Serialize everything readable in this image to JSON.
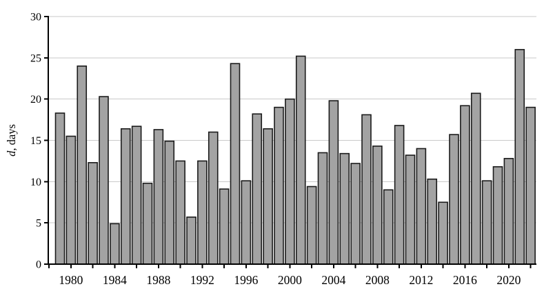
{
  "chart_data": {
    "type": "bar",
    "title": "",
    "xlabel": "",
    "ylabel": "d, days",
    "ylabel_italic_part": "d",
    "ylabel_regular_part": ", days",
    "ylim": [
      0,
      30
    ],
    "yticks": [
      0,
      5,
      10,
      15,
      20,
      25,
      30
    ],
    "grid": "horizontal-gridlines-at-yticks",
    "legend_position": "none",
    "categories": [
      1979,
      1980,
      1981,
      1982,
      1983,
      1984,
      1985,
      1986,
      1987,
      1988,
      1989,
      1990,
      1991,
      1992,
      1993,
      1994,
      1995,
      1996,
      1997,
      1998,
      1999,
      2000,
      2001,
      2002,
      2003,
      2004,
      2005,
      2006,
      2007,
      2008,
      2009,
      2010,
      2011,
      2012,
      2013,
      2014,
      2015,
      2016,
      2017,
      2018,
      2019,
      2020,
      2021,
      2022
    ],
    "values": [
      18.3,
      15.5,
      24.0,
      12.3,
      20.3,
      4.9,
      16.4,
      16.7,
      9.8,
      16.3,
      14.9,
      12.5,
      5.7,
      12.5,
      16.0,
      9.1,
      24.3,
      10.1,
      18.2,
      16.4,
      19.0,
      20.0,
      25.2,
      9.4,
      13.5,
      19.8,
      13.4,
      12.2,
      18.1,
      14.3,
      9.0,
      16.8,
      13.2,
      14.0,
      10.3,
      7.5,
      15.7,
      19.2,
      20.7,
      10.1,
      11.8,
      12.8,
      26.0,
      19.0
    ],
    "xtick_minor_years_step": 2,
    "xtick_label_years": [
      1980,
      1984,
      1988,
      1992,
      1996,
      2000,
      2004,
      2008,
      2012,
      2016,
      2020
    ],
    "colors": {
      "bar_fill": "#a3a3a3",
      "bar_stroke": "#1a1a1a",
      "axis": "#000000",
      "gridline": "#c9c9c9",
      "tick_label": "#000000",
      "background": "#ffffff"
    }
  }
}
